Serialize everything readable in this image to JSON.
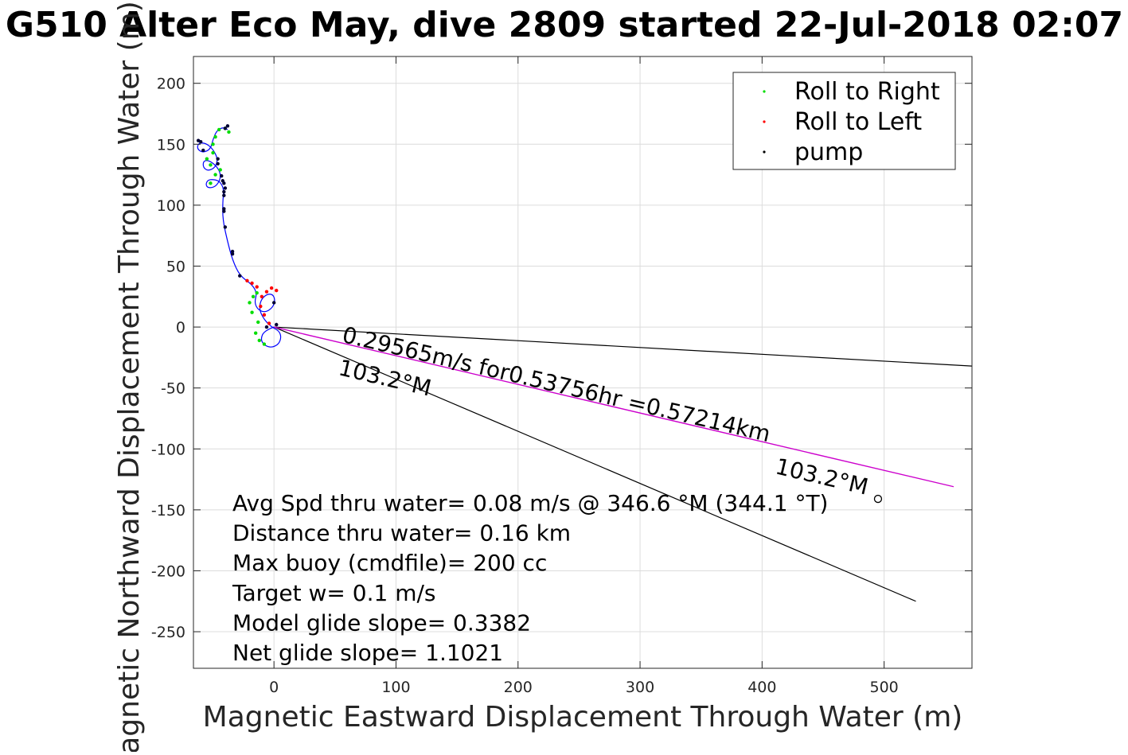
{
  "chart_data": {
    "type": "scatter",
    "title": "G510 Alter Eco May, dive 2809 started 22-Jul-2018 02:07",
    "xlabel": "Magnetic Eastward Displacement Through Water (m)",
    "ylabel": "Magnetic Northward Displacement Through Water (m)",
    "xlim": [
      -66,
      572
    ],
    "ylim": [
      -280,
      222
    ],
    "xticks": [
      0,
      100,
      200,
      300,
      400,
      500
    ],
    "yticks": [
      200,
      150,
      100,
      50,
      0,
      -50,
      -100,
      -150,
      -200,
      -250
    ],
    "grid": true,
    "legend_position": "top-right",
    "legend": [
      {
        "label": "Roll to Right",
        "color": "#00dd00"
      },
      {
        "label": "Roll to Left",
        "color": "#ff0000"
      },
      {
        "label": "pump",
        "color": "#000000"
      }
    ],
    "colors": {
      "track": "#0000ff",
      "roll_right": "#00dd00",
      "roll_left": "#ff0000",
      "pump": "#000033",
      "projection": "#cc00cc",
      "reference_lines": "#000000"
    },
    "track": [
      [
        0,
        0
      ],
      [
        -8,
        -3
      ],
      [
        -11,
        -10
      ],
      [
        -8,
        -15
      ],
      [
        -2,
        -17
      ],
      [
        4,
        -14
      ],
      [
        6,
        -8
      ],
      [
        4,
        -3
      ],
      [
        -2,
        0
      ],
      [
        -8,
        6
      ],
      [
        -12,
        14
      ],
      [
        -11,
        22
      ],
      [
        -6,
        27
      ],
      [
        -1,
        27
      ],
      [
        1,
        22
      ],
      [
        -1,
        16
      ],
      [
        -7,
        12
      ],
      [
        -13,
        14
      ],
      [
        -16,
        20
      ],
      [
        -14,
        28
      ],
      [
        -18,
        35
      ],
      [
        -28,
        42
      ],
      [
        -34,
        55
      ],
      [
        -38,
        70
      ],
      [
        -42,
        88
      ],
      [
        -42,
        103
      ],
      [
        -41,
        113
      ],
      [
        -44,
        119
      ],
      [
        -48,
        121
      ],
      [
        -54,
        121
      ],
      [
        -56,
        117
      ],
      [
        -54,
        114
      ],
      [
        -48,
        115
      ],
      [
        -44,
        121
      ],
      [
        -44,
        127
      ],
      [
        -48,
        133
      ],
      [
        -54,
        137
      ],
      [
        -58,
        136
      ],
      [
        -58,
        131
      ],
      [
        -54,
        128
      ],
      [
        -48,
        131
      ],
      [
        -46,
        138
      ],
      [
        -50,
        146
      ],
      [
        -56,
        151
      ],
      [
        -62,
        151
      ],
      [
        -63,
        146
      ],
      [
        -58,
        143
      ],
      [
        -52,
        146
      ],
      [
        -50,
        154
      ],
      [
        -47,
        161
      ],
      [
        -42,
        164
      ],
      [
        -38,
        162
      ]
    ],
    "roll_right_points": [
      [
        -8,
        -14
      ],
      [
        -12,
        -11
      ],
      [
        -15,
        -5
      ],
      [
        -13,
        4
      ],
      [
        -18,
        12
      ],
      [
        -20,
        20
      ],
      [
        -17,
        25
      ],
      [
        -14,
        28
      ],
      [
        -52,
        118
      ],
      [
        -48,
        125
      ],
      [
        -44,
        129
      ],
      [
        -52,
        133
      ],
      [
        -55,
        138
      ],
      [
        -50,
        143
      ],
      [
        -50,
        150
      ],
      [
        -48,
        156
      ],
      [
        -45,
        162
      ],
      [
        -40,
        163
      ],
      [
        -37,
        160
      ]
    ],
    "roll_left_points": [
      [
        -4,
        3
      ],
      [
        -8,
        10
      ],
      [
        -11,
        17
      ],
      [
        -10,
        25
      ],
      [
        -6,
        29
      ],
      [
        -2,
        32
      ],
      [
        2,
        30
      ],
      [
        -14,
        33
      ],
      [
        -18,
        36
      ],
      [
        -22,
        38
      ]
    ],
    "pump_points": [
      [
        -28,
        42
      ],
      [
        -34,
        60
      ],
      [
        -34,
        62
      ],
      [
        -40,
        82
      ],
      [
        -41,
        95
      ],
      [
        -41,
        97
      ],
      [
        -41,
        108
      ],
      [
        -41,
        111
      ],
      [
        -40,
        114
      ],
      [
        -41,
        118
      ],
      [
        -42,
        120
      ],
      [
        -43,
        124
      ],
      [
        -46,
        134
      ],
      [
        -46,
        138
      ],
      [
        -40,
        163
      ],
      [
        -38,
        165
      ],
      [
        -60,
        152
      ],
      [
        -62,
        153
      ],
      [
        -58,
        145
      ],
      [
        0,
        20
      ],
      [
        -6,
        0
      ],
      [
        2,
        2
      ]
    ],
    "projection_line": {
      "from": [
        0,
        0
      ],
      "to": [
        557,
        -131
      ]
    },
    "reference_lines": [
      {
        "from": [
          0,
          0
        ],
        "to": [
          572,
          -32
        ]
      },
      {
        "from": [
          0,
          0
        ],
        "to": [
          526,
          -225
        ]
      }
    ],
    "end_marker": [
      495,
      -141
    ],
    "annotations": [
      {
        "text": "0.29565m/s for0.53756hr =0.57214km",
        "at": [
          55,
          -12
        ],
        "rotate": 13.2
      },
      {
        "text": "103.2°M",
        "at": [
          52,
          -39
        ],
        "rotate": 13.2
      },
      {
        "text": "103.2°M",
        "at": [
          410,
          -120
        ],
        "rotate": 13.2
      }
    ],
    "stats": [
      "Avg Spd thru water=  0.08 m/s @ 346.6 °M (344.1 °T)",
      "Distance thru water=  0.16 km",
      "Max buoy (cmdfile)= 200 cc",
      "Target w= 0.1 m/s",
      "Model glide slope= 0.3382",
      "Net glide slope= 1.1021"
    ]
  }
}
